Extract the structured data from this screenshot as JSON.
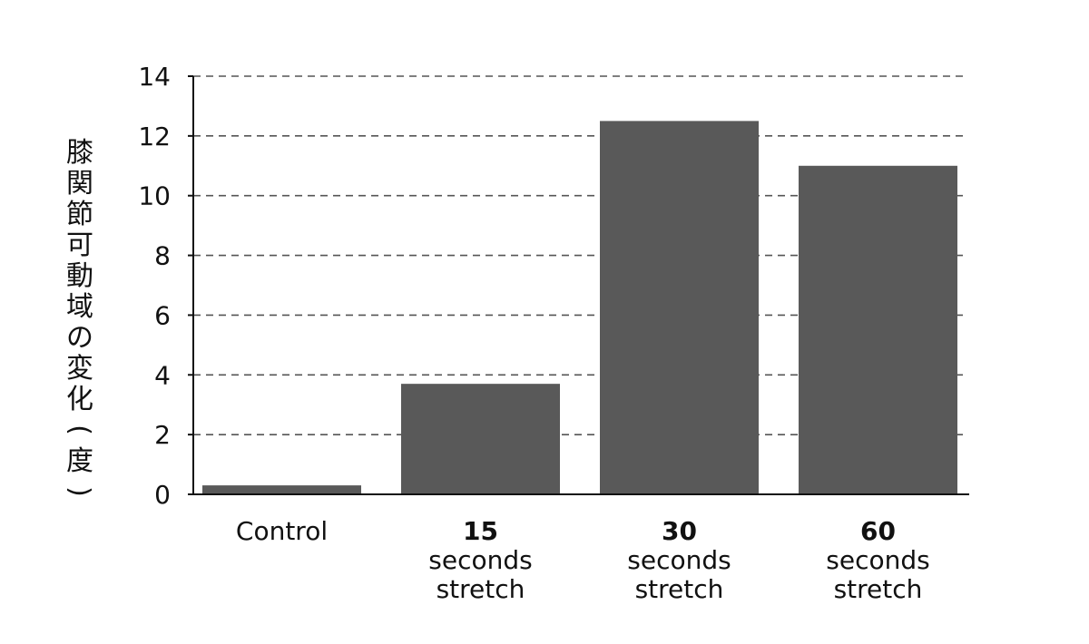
{
  "chart_data": {
    "type": "bar",
    "categories": [
      [
        "Control"
      ],
      [
        "15",
        "seconds",
        "stretch"
      ],
      [
        "30",
        "seconds",
        "stretch"
      ],
      [
        "60",
        "seconds",
        "stretch"
      ]
    ],
    "values": [
      0.3,
      3.7,
      12.5,
      11.0
    ],
    "title": "",
    "xlabel": "",
    "ylabel": "膝関節可動域の変化(度)",
    "ylim": [
      0,
      14
    ],
    "yticks": [
      0,
      2,
      4,
      6,
      8,
      10,
      12,
      14
    ],
    "grid": true,
    "bar_color": "#595959",
    "grid_color": "#555555"
  }
}
